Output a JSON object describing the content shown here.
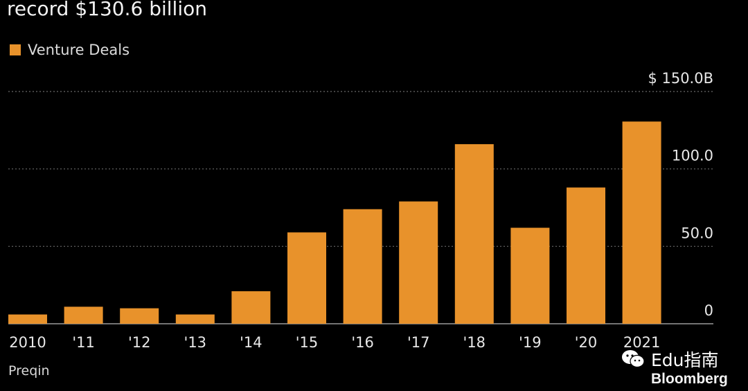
{
  "header": {
    "title": "record $130.6 billion"
  },
  "legend": {
    "label": "Venture Deals"
  },
  "source": "Preqin",
  "watermark": {
    "text": "Edu指南",
    "icon": "wechat-icon"
  },
  "brand": "Bloomberg",
  "colors": {
    "bar": "#e8922b",
    "background": "#000000",
    "grid": "#6a6a6a",
    "text": "#e8e8e8"
  },
  "chart_data": {
    "type": "bar",
    "categories": [
      "2010",
      "'11",
      "'12",
      "'13",
      "'14",
      "'15",
      "'16",
      "'17",
      "'18",
      "'19",
      "'20",
      "2021"
    ],
    "series": [
      {
        "name": "Venture Deals",
        "values": [
          6,
          11,
          10,
          6,
          21,
          59,
          74,
          79,
          116,
          62,
          88,
          130.6
        ]
      }
    ],
    "ylim": [
      0,
      150
    ],
    "y_ticks": [
      {
        "value": 0,
        "label": "0"
      },
      {
        "value": 50,
        "label": "50.0"
      },
      {
        "value": 100,
        "label": "100.0"
      },
      {
        "value": 150,
        "label": "$ 150.0B"
      }
    ],
    "y_axis_side": "right",
    "grid": true,
    "legend_position": "top-left"
  }
}
